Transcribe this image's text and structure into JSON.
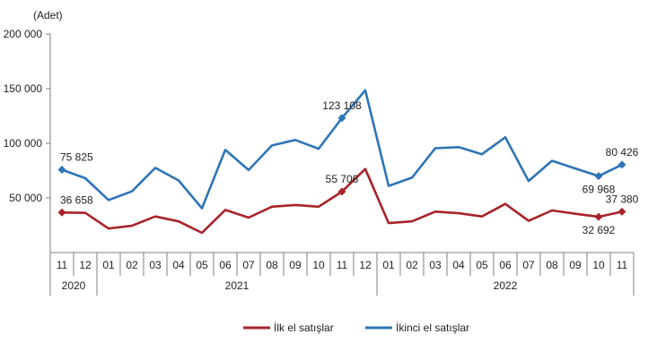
{
  "chart_data": {
    "type": "line",
    "unit_label": "(Adet)",
    "y_ticks": [
      "200 000",
      "150 000",
      "100 000",
      "50 000"
    ],
    "y_tick_values": [
      200000,
      150000,
      100000,
      50000
    ],
    "ylim": [
      0,
      200000
    ],
    "months": [
      "11",
      "12",
      "01",
      "02",
      "03",
      "04",
      "05",
      "06",
      "07",
      "08",
      "09",
      "10",
      "11",
      "12",
      "01",
      "02",
      "03",
      "04",
      "05",
      "06",
      "07",
      "08",
      "09",
      "10",
      "11"
    ],
    "years": [
      {
        "label": "2020",
        "start": 0,
        "end": 1
      },
      {
        "label": "2021",
        "start": 2,
        "end": 13
      },
      {
        "label": "2022",
        "start": 14,
        "end": 24
      }
    ],
    "series": [
      {
        "name": "İlk el satışlar",
        "color": "#a8232a",
        "values": [
          36658,
          36300,
          22000,
          24500,
          33000,
          28500,
          18000,
          39000,
          32000,
          42000,
          43500,
          42000,
          55706,
          76500,
          27000,
          28500,
          37500,
          36000,
          33000,
          44500,
          29000,
          38500,
          35500,
          32692,
          37380
        ],
        "markers": [
          {
            "index": 0,
            "label": "36 658",
            "pos": "above"
          },
          {
            "index": 12,
            "label": "55 706",
            "pos": "above"
          },
          {
            "index": 23,
            "label": "32 692",
            "pos": "below"
          },
          {
            "index": 24,
            "label": "37 380",
            "pos": "above"
          }
        ]
      },
      {
        "name": "İkinci el satışlar",
        "color": "#2e75b6",
        "values": [
          75825,
          68000,
          48000,
          56000,
          77500,
          66000,
          40500,
          94000,
          75500,
          98000,
          103000,
          95000,
          123108,
          148500,
          61000,
          68500,
          95500,
          96500,
          90000,
          105500,
          65500,
          84000,
          77000,
          69968,
          80426
        ],
        "markers": [
          {
            "index": 0,
            "label": "75 825",
            "pos": "above"
          },
          {
            "index": 12,
            "label": "123 108",
            "pos": "above"
          },
          {
            "index": 23,
            "label": "69 968",
            "pos": "below"
          },
          {
            "index": 24,
            "label": "80 426",
            "pos": "above"
          }
        ]
      }
    ],
    "legend": "bottom-center",
    "grid": false
  }
}
